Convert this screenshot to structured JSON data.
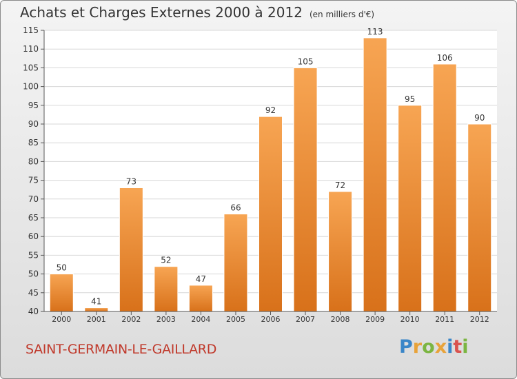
{
  "header": {
    "title": "Achats et Charges Externes 2000 à 2012",
    "unit": "(en milliers d'€)"
  },
  "footer": {
    "commune": "SAINT-GERMAIN-LE-GAILLARD",
    "logo_letters": [
      {
        "ch": "P",
        "color": "#3a86c8"
      },
      {
        "ch": "r",
        "color": "#e8a33a"
      },
      {
        "ch": "o",
        "color": "#7bb541"
      },
      {
        "ch": "x",
        "color": "#e8a33a"
      },
      {
        "ch": "i",
        "color": "#3a86c8"
      },
      {
        "ch": "t",
        "color": "#d9534f"
      },
      {
        "ch": "i",
        "color": "#7bb541"
      }
    ]
  },
  "chart_data": {
    "type": "bar",
    "title": "Achats et Charges Externes 2000 à 2012",
    "subtitle": "(en milliers d'€)",
    "xlabel": "",
    "ylabel": "",
    "categories": [
      "2000",
      "2001",
      "2002",
      "2003",
      "2004",
      "2005",
      "2006",
      "2007",
      "2008",
      "2009",
      "2010",
      "2011",
      "2012"
    ],
    "values": [
      50,
      41,
      73,
      52,
      47,
      66,
      92,
      105,
      72,
      113,
      95,
      106,
      90
    ],
    "ylim": [
      40,
      115
    ],
    "yticks": [
      40,
      45,
      50,
      55,
      60,
      65,
      70,
      75,
      80,
      85,
      90,
      95,
      100,
      105,
      110,
      115
    ],
    "grid": true,
    "bar_color_light": "#f7a553",
    "bar_color_dark": "#d8711a"
  }
}
